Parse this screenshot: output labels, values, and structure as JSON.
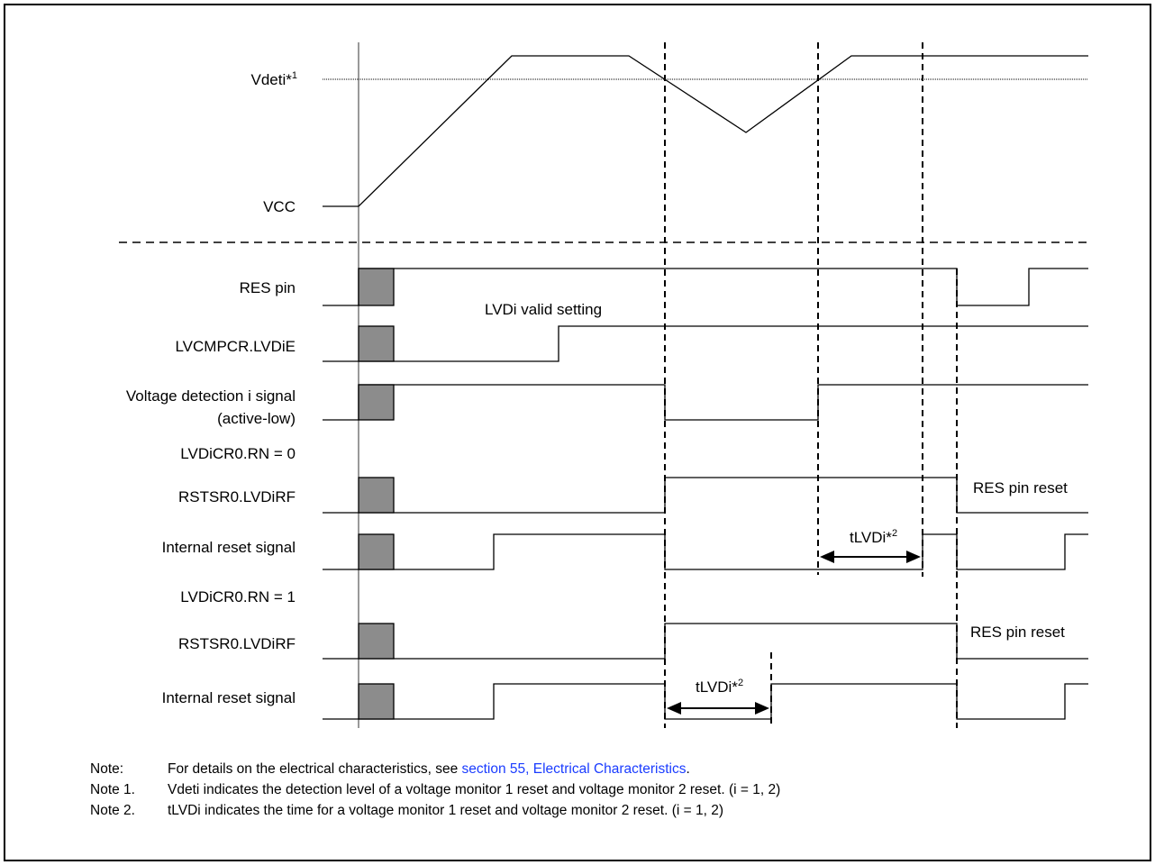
{
  "labels": {
    "vdeti": "Vdeti*",
    "vdeti_sup": "1",
    "vcc": "VCC",
    "res_pin": "RES pin",
    "lvdi_valid": "LVDi valid setting",
    "lvcmpcr": "LVCMPCR.LVDiE",
    "vdet_signal_1": "Voltage detection i signal",
    "vdet_signal_2": "(active-low)",
    "rn0": "LVDiCR0.RN = 0",
    "rstsr_a": "RSTSR0.LVDiRF",
    "internal_reset_a": "Internal reset signal",
    "res_pin_reset_a": "RES pin reset",
    "tlvdi_a": "tLVDi*",
    "tlvdi_a_sup": "2",
    "rn1": "LVDiCR0.RN = 1",
    "rstsr_b": "RSTSR0.LVDiRF",
    "internal_reset_b": "Internal reset signal",
    "res_pin_reset_b": "RES pin reset",
    "tlvdi_b": "tLVDi*",
    "tlvdi_b_sup": "2"
  },
  "notes": {
    "n0_label": "Note:",
    "n0_text": "For details on the electrical characteristics, see ",
    "n0_link": "section 55, Electrical Characteristics",
    "n0_end": ".",
    "n1_label": "Note 1.",
    "n1_text": "Vdeti indicates the detection level of a voltage monitor 1 reset and voltage monitor 2 reset.  (i = 1, 2)",
    "n2_label": "Note 2.",
    "n2_text": "tLVDi indicates the time for a voltage monitor 1 reset and voltage monitor 2 reset. (i = 1, 2)"
  },
  "colors": {
    "link": "#1a3cff",
    "box_fill": "#8c8c8c"
  }
}
